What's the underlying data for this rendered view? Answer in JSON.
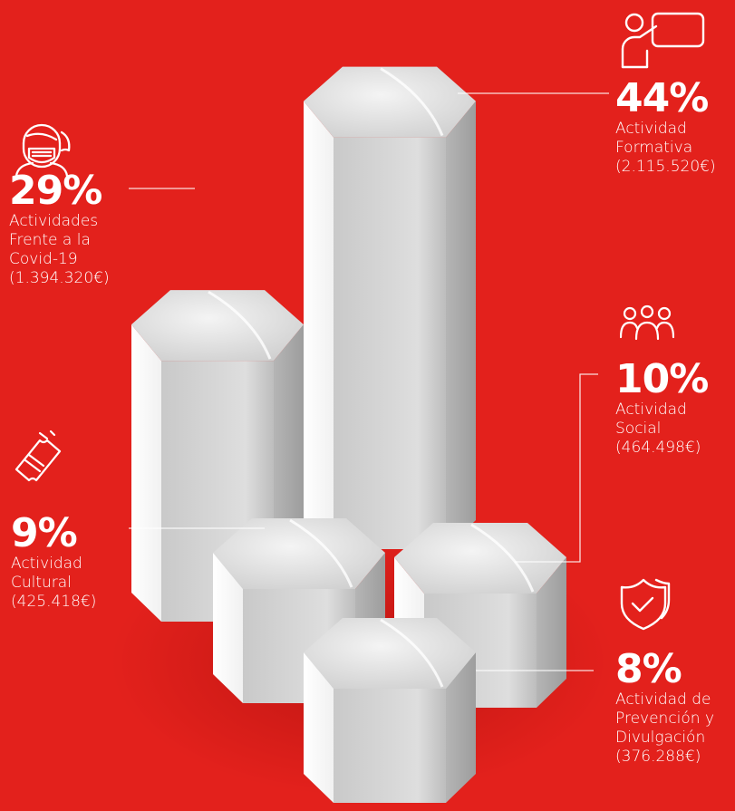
{
  "colors": {
    "background": "#e3211c",
    "text": "#ffffff",
    "column_face": "#d0d0d0",
    "column_side": "#ffffff"
  },
  "chart_data": {
    "type": "bar",
    "categories": [
      "Actividad Formativa",
      "Actividades Frente a la Covid-19",
      "Actividad Social",
      "Actividad Cultural",
      "Actividad de Prevención y Divulgación"
    ],
    "values": [
      44,
      29,
      10,
      9,
      8
    ],
    "amounts": [
      "2.115.520€",
      "1.394.320€",
      "464.498€",
      "425.418€",
      "376.288€"
    ],
    "unit": "%",
    "legend": "none",
    "grid": false
  },
  "items": [
    {
      "key": "formativa",
      "percent": "44%",
      "label": "Actividad\nFormativa\n(2.115.520€)",
      "icon": "teacher-board-icon"
    },
    {
      "key": "covid",
      "percent": "29%",
      "label": "Actividades\nFrente a la\nCovid-19\n(1.394.320€)",
      "icon": "mask-person-icon"
    },
    {
      "key": "social",
      "percent": "10%",
      "label": "Actividad\nSocial\n(464.498€)",
      "icon": "people-group-icon"
    },
    {
      "key": "cultural",
      "percent": "9%",
      "label": "Actividad\nCultural\n(425.418€)",
      "icon": "ticket-icon"
    },
    {
      "key": "prevencion",
      "percent": "8%",
      "label": "Actividad de\nPrevención y\nDivulgación\n(376.288€)",
      "icon": "shield-check-icon"
    }
  ]
}
